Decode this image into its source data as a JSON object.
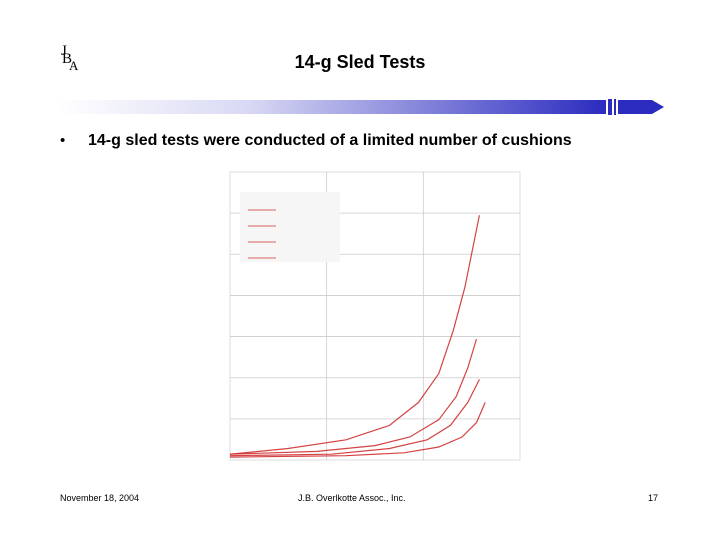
{
  "logo": {
    "letters": [
      "J",
      "B",
      "A"
    ]
  },
  "title": "14-g Sled Tests",
  "bullet": {
    "symbol": "•",
    "text": "14-g sled tests were conducted of a limited number of cushions"
  },
  "footer": {
    "date": "November 18, 2004",
    "company": "J.B. Overlkotte Assoc., Inc.",
    "page": "17"
  },
  "colors": {
    "accent": "#3333cc",
    "curve": "#cc2222",
    "grid": "#cccccc"
  },
  "chart_data": {
    "type": "line",
    "title": "",
    "xlabel": "",
    "ylabel": "",
    "legend_placement": "top-left",
    "grid": true,
    "xlim": [
      0,
      1
    ],
    "ylim": [
      0,
      1
    ],
    "series": [
      {
        "values": [
          [
            0.0,
            0.02
          ],
          [
            0.2,
            0.04
          ],
          [
            0.4,
            0.07
          ],
          [
            0.55,
            0.12
          ],
          [
            0.65,
            0.2
          ],
          [
            0.72,
            0.3
          ],
          [
            0.77,
            0.45
          ],
          [
            0.81,
            0.6
          ],
          [
            0.84,
            0.75
          ],
          [
            0.86,
            0.85
          ]
        ]
      },
      {
        "values": [
          [
            0.0,
            0.02
          ],
          [
            0.3,
            0.03
          ],
          [
            0.5,
            0.05
          ],
          [
            0.62,
            0.08
          ],
          [
            0.72,
            0.14
          ],
          [
            0.78,
            0.22
          ],
          [
            0.82,
            0.32
          ],
          [
            0.85,
            0.42
          ]
        ]
      },
      {
        "values": [
          [
            0.0,
            0.015
          ],
          [
            0.35,
            0.02
          ],
          [
            0.55,
            0.04
          ],
          [
            0.68,
            0.07
          ],
          [
            0.76,
            0.12
          ],
          [
            0.82,
            0.2
          ],
          [
            0.86,
            0.28
          ]
        ]
      },
      {
        "values": [
          [
            0.0,
            0.01
          ],
          [
            0.4,
            0.015
          ],
          [
            0.6,
            0.025
          ],
          [
            0.72,
            0.045
          ],
          [
            0.8,
            0.08
          ],
          [
            0.85,
            0.13
          ],
          [
            0.88,
            0.2
          ]
        ]
      }
    ]
  }
}
